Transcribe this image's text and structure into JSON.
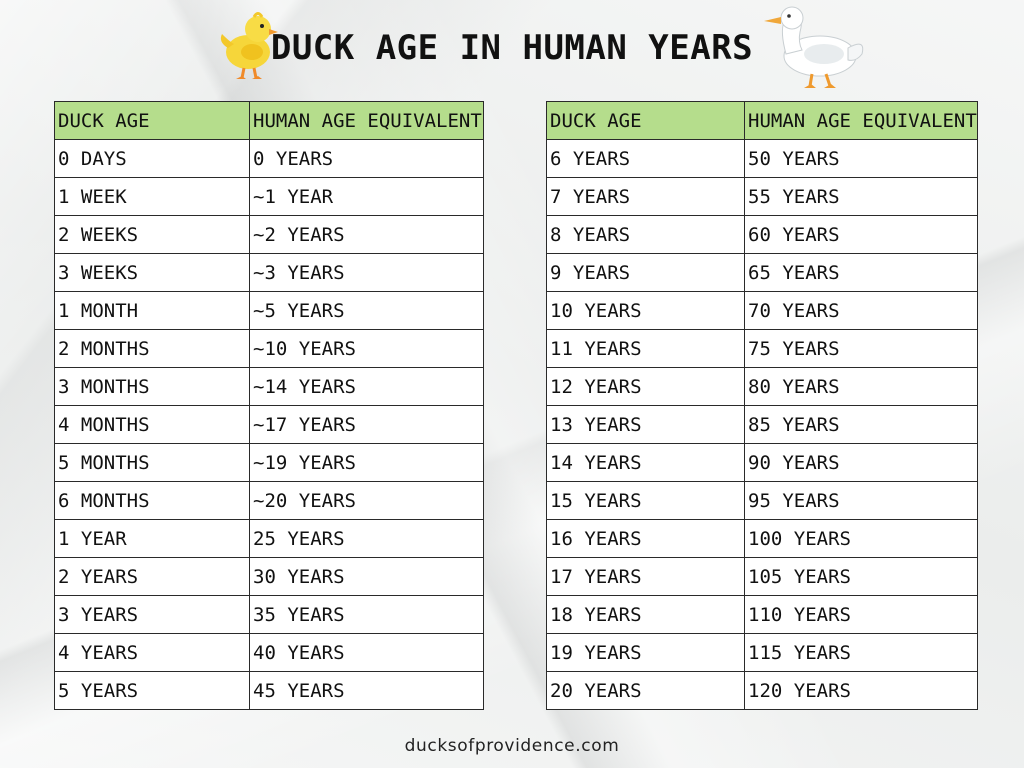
{
  "title": "DUCK AGE IN HUMAN YEARS",
  "footer": "ducksofprovidence.com",
  "illustrations": {
    "left": "duckling-icon",
    "right": "white-duck-icon"
  },
  "colors": {
    "header_bg": "#b5dd8c",
    "border": "#2a2a2a"
  },
  "tables": [
    {
      "headers": [
        "DUCK AGE",
        "HUMAN AGE EQUIVALENT"
      ],
      "rows": [
        [
          "0 DAYS",
          "0 YEARS"
        ],
        [
          "1 WEEK",
          "~1 YEAR"
        ],
        [
          "2 WEEKS",
          "~2 YEARS"
        ],
        [
          "3 WEEKS",
          "~3 YEARS"
        ],
        [
          "1 MONTH",
          "~5 YEARS"
        ],
        [
          "2 MONTHS",
          "~10 YEARS"
        ],
        [
          "3 MONTHS",
          "~14 YEARS"
        ],
        [
          "4 MONTHS",
          "~17 YEARS"
        ],
        [
          "5 MONTHS",
          "~19 YEARS"
        ],
        [
          "6 MONTHS",
          "~20 YEARS"
        ],
        [
          "1 YEAR",
          "25 YEARS"
        ],
        [
          "2 YEARS",
          "30 YEARS"
        ],
        [
          "3 YEARS",
          "35 YEARS"
        ],
        [
          "4 YEARS",
          "40 YEARS"
        ],
        [
          "5 YEARS",
          "45 YEARS"
        ]
      ]
    },
    {
      "headers": [
        "DUCK AGE",
        "HUMAN AGE EQUIVALENT"
      ],
      "rows": [
        [
          "6 YEARS",
          "50 YEARS"
        ],
        [
          "7 YEARS",
          "55 YEARS"
        ],
        [
          "8 YEARS",
          "60 YEARS"
        ],
        [
          "9 YEARS",
          "65 YEARS"
        ],
        [
          "10 YEARS",
          "70 YEARS"
        ],
        [
          "11 YEARS",
          "75 YEARS"
        ],
        [
          "12 YEARS",
          "80 YEARS"
        ],
        [
          "13 YEARS",
          "85 YEARS"
        ],
        [
          "14 YEARS",
          "90 YEARS"
        ],
        [
          "15 YEARS",
          "95 YEARS"
        ],
        [
          "16 YEARS",
          "100 YEARS"
        ],
        [
          "17 YEARS",
          "105 YEARS"
        ],
        [
          "18 YEARS",
          "110 YEARS"
        ],
        [
          "19 YEARS",
          "115 YEARS"
        ],
        [
          "20 YEARS",
          "120 YEARS"
        ]
      ]
    }
  ]
}
